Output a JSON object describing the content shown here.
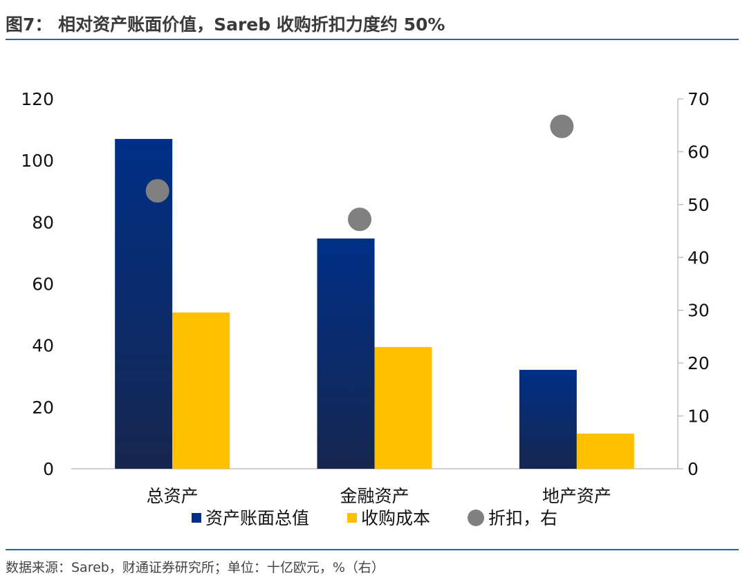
{
  "title": "图7： 相对资产账面价值，Sareb 收购折扣力度约 50%",
  "source": "数据来源：Sareb，财通证券研究所；单位：十亿欧元，%（右）",
  "chart_data": {
    "type": "bar",
    "categories": [
      "总资产",
      "金融资产",
      "地产资产"
    ],
    "series": [
      {
        "name": "资产账面总值",
        "type": "bar",
        "axis": "left",
        "values": [
          107.0,
          74.7,
          32.1
        ],
        "color": "#003087"
      },
      {
        "name": "收购成本",
        "type": "bar",
        "axis": "left",
        "values": [
          50.7,
          39.5,
          11.4
        ],
        "color": "#FFC000"
      },
      {
        "name": "折扣，右",
        "type": "scatter",
        "axis": "right",
        "values": [
          52.6,
          47.2,
          64.8
        ],
        "color": "#808080"
      }
    ],
    "ylim_left": [
      0,
      120
    ],
    "yticks_left": [
      "0",
      "20",
      "40",
      "60",
      "80",
      "100",
      "120"
    ],
    "ylim_right": [
      0,
      70
    ],
    "yticks_right": [
      "0",
      "10",
      "20",
      "30",
      "40",
      "50",
      "60",
      "70"
    ],
    "legend_placement": "bottom",
    "grid": false
  }
}
